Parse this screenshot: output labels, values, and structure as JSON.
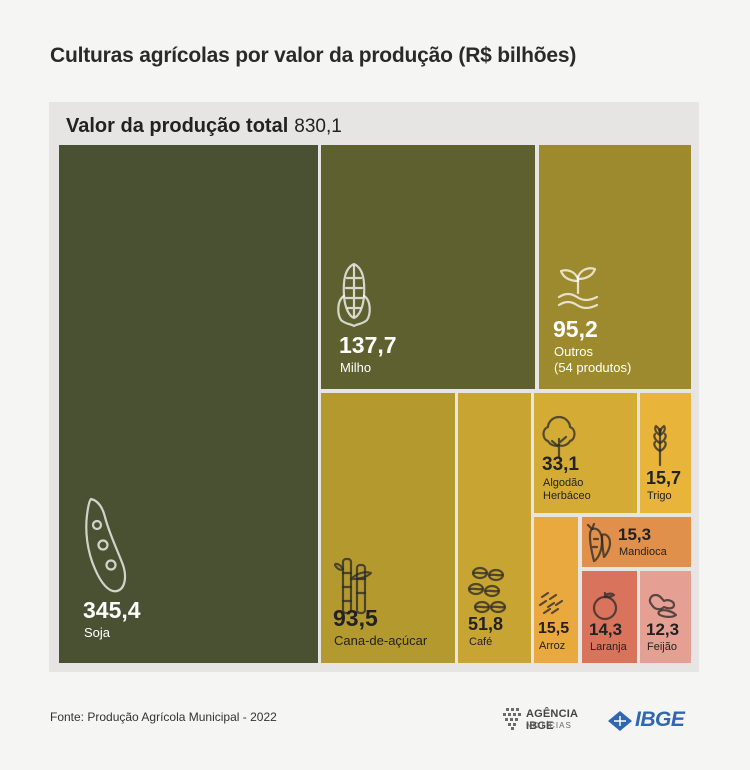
{
  "title": "Culturas agrícolas por valor da produção (R$ bilhões)",
  "total": {
    "label": "Valor da produção total",
    "value": "830,1"
  },
  "chart_data": {
    "type": "treemap",
    "title": "Culturas agrícolas por valor da produção (R$ bilhões)",
    "unit": "R$ bilhões",
    "total": 830.1,
    "items": [
      {
        "name": "Soja",
        "value": 345.4,
        "display": "345,4",
        "label_lines": [
          "Soja"
        ],
        "color": "#4a5132",
        "text_color": "#ffffff",
        "icon": "soybean-pod-icon"
      },
      {
        "name": "Milho",
        "value": 137.7,
        "display": "137,7",
        "label_lines": [
          "Milho"
        ],
        "color": "#5f6030",
        "text_color": "#ffffff",
        "icon": "corn-icon"
      },
      {
        "name": "Outros (54 produtos)",
        "value": 95.2,
        "display": "95,2",
        "label_lines": [
          "Outros",
          "(54 produtos)"
        ],
        "color": "#9d8a2e",
        "text_color": "#ffffff",
        "icon": "sprout-icon"
      },
      {
        "name": "Cana-de-açúcar",
        "value": 93.5,
        "display": "93,5",
        "label_lines": [
          "Cana-de-açúcar"
        ],
        "color": "#b4992f",
        "text_color": "#222222",
        "icon": "sugarcane-icon"
      },
      {
        "name": "Café",
        "value": 51.8,
        "display": "51,8",
        "label_lines": [
          "Café"
        ],
        "color": "#c8a433",
        "text_color": "#222222",
        "icon": "coffee-beans-icon"
      },
      {
        "name": "Algodão Herbáceo",
        "value": 33.1,
        "display": "33,1",
        "label_lines": [
          "Algodão",
          "Herbáceo"
        ],
        "color": "#d4ac35",
        "text_color": "#222222",
        "icon": "tree-icon"
      },
      {
        "name": "Trigo",
        "value": 15.7,
        "display": "15,7",
        "label_lines": [
          "Trigo"
        ],
        "color": "#e8b53a",
        "text_color": "#222222",
        "icon": "wheat-icon"
      },
      {
        "name": "Arroz",
        "value": 15.5,
        "display": "15,5",
        "label_lines": [
          "Arroz"
        ],
        "color": "#e9a93e",
        "text_color": "#222222",
        "icon": "rice-grains-icon"
      },
      {
        "name": "Mandioca",
        "value": 15.3,
        "display": "15,3",
        "label_lines": [
          "Mandioca"
        ],
        "color": "#e0904a",
        "text_color": "#222222",
        "icon": "cassava-icon"
      },
      {
        "name": "Laranja",
        "value": 14.3,
        "display": "14,3",
        "label_lines": [
          "Laranja"
        ],
        "color": "#d9735c",
        "text_color": "#222222",
        "icon": "orange-fruit-icon"
      },
      {
        "name": "Feijão",
        "value": 12.3,
        "display": "12,3",
        "label_lines": [
          "Feijão"
        ],
        "color": "#e6a093",
        "text_color": "#222222",
        "icon": "bean-icon"
      }
    ]
  },
  "footer": {
    "source": "Fonte: Produção Agrícola Municipal - 2022",
    "agencia_title": "AGÊNCIA IBGE",
    "agencia_sub": "NOTÍCIAS",
    "ibge_logo_text": "IBGE"
  }
}
